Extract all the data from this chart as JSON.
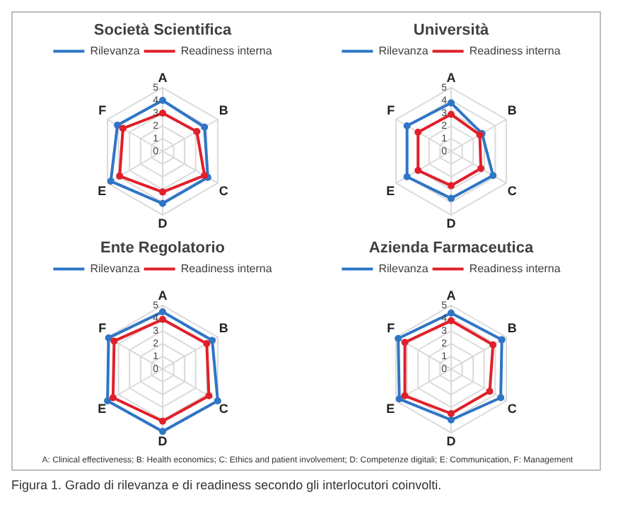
{
  "chart_data": [
    {
      "type": "radar",
      "title": "Società Scientifica",
      "categories": [
        "A",
        "B",
        "C",
        "D",
        "E",
        "F"
      ],
      "ylim": [
        0,
        5
      ],
      "yticks": [
        0,
        1,
        2,
        3,
        4,
        5
      ],
      "grid": true,
      "legend": "top",
      "marker": "circle",
      "series": [
        {
          "name": "Rilevanza",
          "color": "#2f75c6",
          "values": [
            4.0,
            3.8,
            4.1,
            4.1,
            4.7,
            4.1
          ]
        },
        {
          "name": "Readiness interna",
          "color": "#e0202a",
          "values": [
            3.0,
            3.1,
            3.8,
            3.2,
            3.9,
            3.6
          ]
        }
      ]
    },
    {
      "type": "radar",
      "title": "Università",
      "categories": [
        "A",
        "B",
        "C",
        "D",
        "E",
        "F"
      ],
      "ylim": [
        0,
        5
      ],
      "yticks": [
        0,
        1,
        2,
        3,
        4,
        5
      ],
      "grid": true,
      "legend": "top",
      "marker": "circle",
      "series": [
        {
          "name": "Rilevanza",
          "color": "#2f75c6",
          "values": [
            3.8,
            2.8,
            3.8,
            3.7,
            4.0,
            4.0
          ]
        },
        {
          "name": "Readiness interna",
          "color": "#e0202a",
          "values": [
            2.9,
            2.6,
            2.7,
            2.7,
            3.0,
            3.0
          ]
        }
      ]
    },
    {
      "type": "radar",
      "title": "Ente Regolatorio",
      "categories": [
        "A",
        "B",
        "C",
        "D",
        "E",
        "F"
      ],
      "ylim": [
        0,
        5
      ],
      "yticks": [
        0,
        1,
        2,
        3,
        4,
        5
      ],
      "grid": true,
      "legend": "top",
      "marker": "circle",
      "series": [
        {
          "name": "Rilevanza",
          "color": "#2f75c6",
          "values": [
            4.5,
            4.5,
            5.0,
            4.9,
            5.0,
            4.9
          ]
        },
        {
          "name": "Readiness interna",
          "color": "#e0202a",
          "values": [
            3.9,
            4.0,
            4.2,
            4.1,
            4.5,
            4.4
          ]
        }
      ]
    },
    {
      "type": "radar",
      "title": "Azienda Farmaceutica",
      "categories": [
        "A",
        "B",
        "C",
        "D",
        "E",
        "F"
      ],
      "ylim": [
        0,
        5
      ],
      "yticks": [
        0,
        1,
        2,
        3,
        4,
        5
      ],
      "grid": true,
      "legend": "top",
      "marker": "circle",
      "series": [
        {
          "name": "Rilevanza",
          "color": "#2f75c6",
          "values": [
            4.4,
            4.6,
            4.5,
            4.0,
            4.7,
            4.8
          ]
        },
        {
          "name": "Readiness interna",
          "color": "#e0202a",
          "values": [
            3.8,
            3.8,
            3.5,
            3.5,
            4.2,
            4.2
          ]
        }
      ],
      "annotations": [
        "A: Clinical effectiveness; B: Health economics; C: Ethics and patient involvement; D: Competenze digitali; E: Communication, F: Management",
        "Figura 1. Grado di rilevanza e di readiness secondo gli interlocutori coinvolti."
      ]
    }
  ]
}
